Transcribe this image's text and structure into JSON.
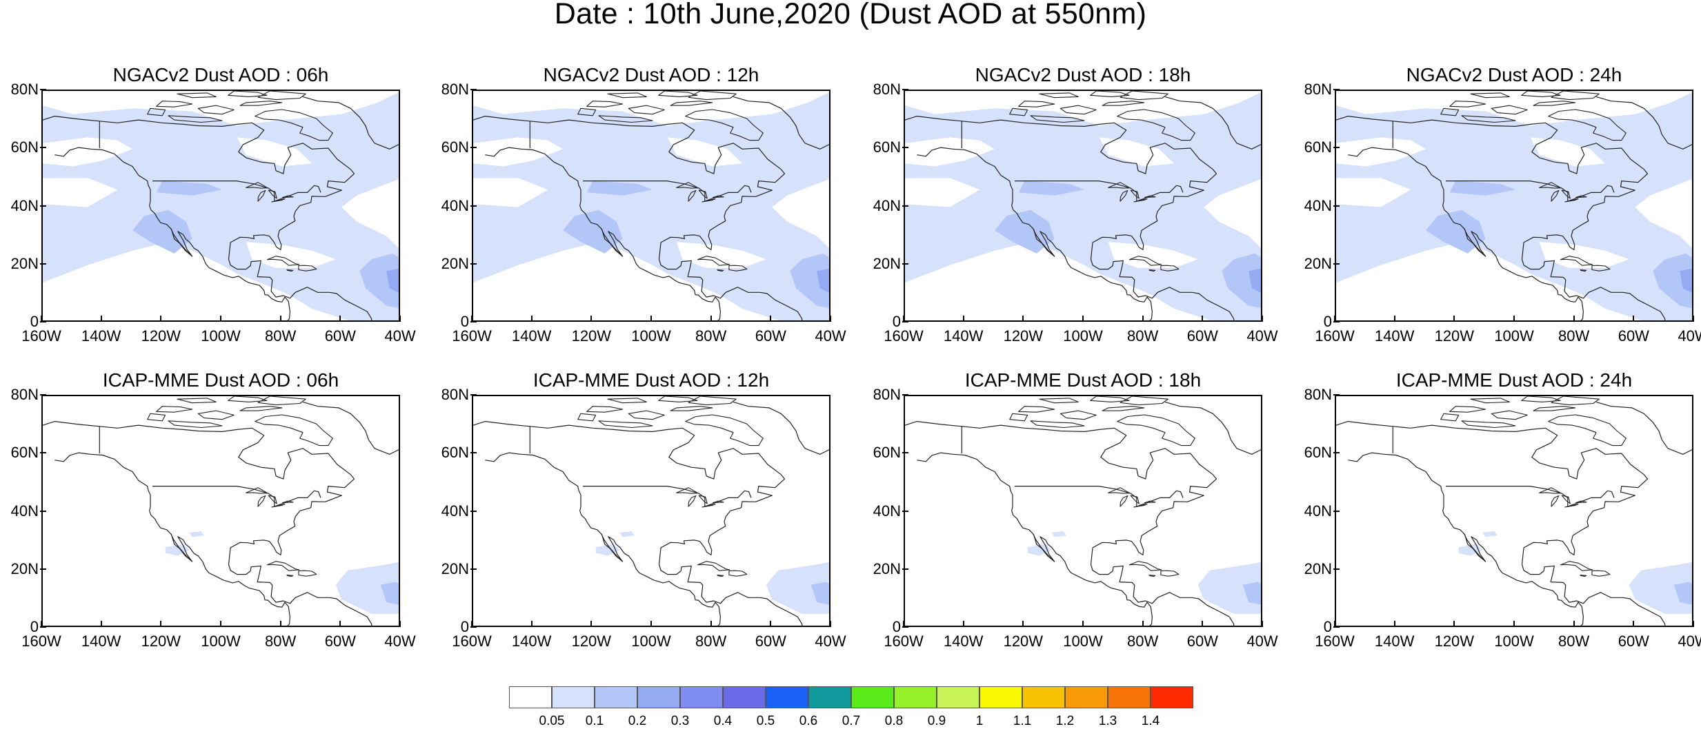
{
  "title": "Date : 10th June,2020 (Dust AOD at 550nm)",
  "panels": [
    {
      "title": "NGACv2 Dust AOD : 06h",
      "dust": "high"
    },
    {
      "title": "NGACv2 Dust AOD : 12h",
      "dust": "high"
    },
    {
      "title": "NGACv2 Dust AOD : 18h",
      "dust": "high"
    },
    {
      "title": "NGACv2 Dust AOD : 24h",
      "dust": "high"
    },
    {
      "title": "ICAP-MME Dust AOD : 06h",
      "dust": "low"
    },
    {
      "title": "ICAP-MME Dust AOD : 12h",
      "dust": "low"
    },
    {
      "title": "ICAP-MME Dust AOD : 18h",
      "dust": "low"
    },
    {
      "title": "ICAP-MME Dust AOD : 24h",
      "dust": "low"
    }
  ],
  "y_ticks": [
    "80N",
    "60N",
    "40N",
    "20N",
    "0"
  ],
  "x_ticks": [
    "160W",
    "140W",
    "120W",
    "100W",
    "80W",
    "60W",
    "40W"
  ],
  "colorbar": {
    "colors": [
      "#ffffff",
      "#d6e2fb",
      "#b3c6f8",
      "#94aaf3",
      "#7f8cf0",
      "#6a6be8",
      "#1a62f5",
      "#119a9e",
      "#59ec1a",
      "#96f02a",
      "#c8f458",
      "#f8f900",
      "#f9c204",
      "#f99a08",
      "#f77408",
      "#ff2a00"
    ],
    "labels": [
      "0.05",
      "0.1",
      "0.2",
      "0.3",
      "0.4",
      "0.5",
      "0.6",
      "0.7",
      "0.8",
      "0.9",
      "1",
      "1.1",
      "1.2",
      "1.3",
      "1.4"
    ]
  }
}
